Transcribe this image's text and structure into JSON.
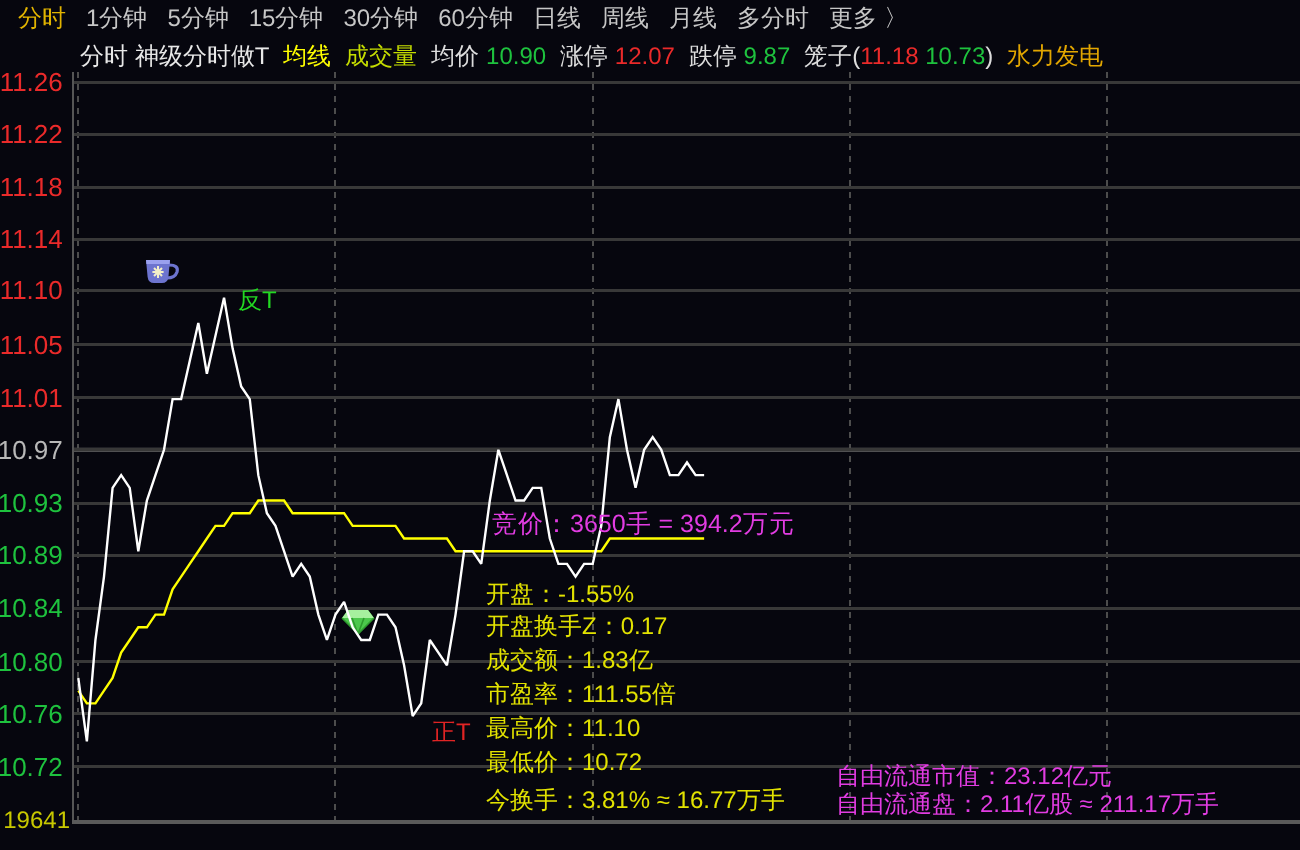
{
  "chart_data": {
    "type": "line",
    "title": "分时 神级分时做T",
    "categories": [
      null,
      null,
      null,
      null,
      null,
      null,
      null,
      null,
      null,
      null,
      null,
      null,
      null,
      null,
      null,
      null,
      null,
      null,
      null,
      null,
      null,
      null,
      null,
      null,
      null,
      null,
      null,
      null,
      null,
      null,
      null,
      null,
      null,
      null,
      null,
      null,
      null,
      null,
      null,
      null,
      null,
      null,
      null,
      null,
      null,
      null,
      null,
      null,
      null,
      null,
      null,
      null,
      null,
      null,
      null,
      null,
      null,
      null,
      null,
      null,
      null,
      null,
      null,
      null,
      null,
      null,
      null,
      null,
      null,
      null,
      null,
      null,
      null,
      null,
      null,
      null,
      null,
      null,
      null,
      null,
      null,
      null,
      null,
      null,
      null,
      null,
      null,
      null,
      null,
      null,
      null,
      null,
      null,
      null,
      null,
      null,
      null,
      null,
      null,
      null,
      null,
      null,
      null,
      null,
      null,
      null,
      null,
      null,
      null,
      null,
      null,
      null,
      null,
      null,
      null,
      null,
      null,
      null,
      null,
      null,
      null,
      null,
      null,
      null,
      null,
      null,
      null,
      null,
      null,
      null,
      null,
      null,
      null,
      null,
      null,
      null,
      null,
      null,
      null,
      null,
      null,
      null,
      null
    ],
    "series": [
      {
        "color": "#ffffff",
        "values": [
          10.79,
          10.74,
          10.82,
          10.87,
          10.94,
          10.95,
          10.94,
          10.89,
          10.93,
          10.95,
          10.97,
          11.01,
          11.01,
          11.04,
          11.07,
          11.03,
          11.06,
          11.09,
          11.05,
          11.02,
          11.01,
          10.95,
          10.92,
          10.91,
          10.89,
          10.87,
          10.88,
          10.87,
          10.84,
          10.82,
          10.84,
          10.85,
          10.83,
          10.82,
          10.82,
          10.84,
          10.84,
          10.83,
          10.8,
          10.76,
          10.77,
          10.82,
          10.81,
          10.8,
          10.84,
          10.89,
          10.89,
          10.88,
          10.93,
          10.97,
          10.95,
          10.93,
          10.93,
          10.94,
          10.94,
          10.9,
          10.88,
          10.88,
          10.87,
          10.88,
          10.88,
          10.91,
          10.98,
          11.01,
          10.97,
          10.94,
          10.97,
          10.98,
          10.97,
          10.95,
          10.95,
          10.96,
          10.95,
          10.95,
          null,
          null,
          null,
          null,
          null,
          null,
          null,
          null,
          null,
          null,
          null,
          null,
          null,
          null,
          null,
          null,
          null,
          null,
          null,
          null,
          null,
          null,
          null,
          null,
          null,
          null,
          null,
          null,
          null,
          null,
          null,
          null,
          null,
          null,
          null,
          null,
          null,
          null,
          null,
          null,
          null,
          null,
          null,
          null,
          null,
          null,
          null,
          null,
          null,
          null,
          null,
          null,
          null,
          null,
          null,
          null,
          null,
          null,
          null,
          null,
          null,
          null,
          null,
          null,
          null,
          null,
          null,
          null,
          null
        ]
      },
      {
        "name": "均线",
        "color": "#ffff00",
        "values": [
          10.78,
          10.77,
          10.77,
          10.78,
          10.79,
          10.81,
          10.82,
          10.83,
          10.83,
          10.84,
          10.84,
          10.86,
          10.87,
          10.88,
          10.89,
          10.9,
          10.91,
          10.91,
          10.92,
          10.92,
          10.92,
          10.93,
          10.93,
          10.93,
          10.93,
          10.92,
          10.92,
          10.92,
          10.92,
          10.92,
          10.92,
          10.92,
          10.91,
          10.91,
          10.91,
          10.91,
          10.91,
          10.91,
          10.9,
          10.9,
          10.9,
          10.9,
          10.9,
          10.9,
          10.89,
          10.89,
          10.89,
          10.89,
          10.89,
          10.89,
          10.89,
          10.89,
          10.89,
          10.89,
          10.89,
          10.89,
          10.89,
          10.89,
          10.89,
          10.89,
          10.89,
          10.89,
          10.9,
          10.9,
          10.9,
          10.9,
          10.9,
          10.9,
          10.9,
          10.9,
          10.9,
          10.9,
          10.9,
          10.9,
          null,
          null,
          null,
          null,
          null,
          null,
          null,
          null,
          null,
          null,
          null,
          null,
          null,
          null,
          null,
          null,
          null,
          null,
          null,
          null,
          null,
          null,
          null,
          null,
          null,
          null,
          null,
          null,
          null,
          null,
          null,
          null,
          null,
          null,
          null,
          null,
          null,
          null,
          null,
          null,
          null,
          null,
          null,
          null,
          null,
          null,
          null,
          null,
          null,
          null,
          null,
          null,
          null,
          null,
          null,
          null,
          null,
          null,
          null,
          null,
          null,
          null,
          null,
          null,
          null,
          null,
          null,
          null,
          null
        ]
      }
    ],
    "ylim": [
      10.678,
      11.268
    ],
    "yticks": [
      {
        "value": 10.72,
        "label": "10.72"
      },
      {
        "value": 10.762,
        "label": "10.76"
      },
      {
        "value": 10.803,
        "label": "10.80"
      },
      {
        "value": 10.845,
        "label": "10.84"
      },
      {
        "value": 10.887,
        "label": "10.89"
      },
      {
        "value": 10.928,
        "label": "10.93"
      },
      {
        "value": 10.97,
        "label": "10.97"
      },
      {
        "value": 11.011,
        "label": "11.01"
      },
      {
        "value": 11.053,
        "label": "11.05"
      },
      {
        "value": 11.096,
        "label": "11.10"
      },
      {
        "value": 11.136,
        "label": "11.14"
      },
      {
        "value": 11.177,
        "label": "11.18"
      },
      {
        "value": 11.219,
        "label": "11.22"
      },
      {
        "value": 11.26,
        "label": "11.26"
      }
    ],
    "ref_lines": [
      {
        "axis": "y",
        "value": 10.97,
        "color": "#6a6a6a"
      }
    ],
    "grid": true,
    "legend": "top",
    "annotations": [
      "分时",
      "1分钟",
      "5分钟",
      "15分钟",
      "30分钟",
      "60分钟",
      "日线",
      "周线",
      "月线",
      "多分时",
      "更多 〉",
      "成交量",
      "均价 10.90",
      "涨停 12.07",
      "跌停 9.87",
      "笼子(11.18 10.73)",
      "水力发电",
      "反T",
      "正T",
      "竞价：3650手 = 394.2万元",
      "开盘：-1.55%",
      "开盘换手Z：0.17",
      "成交额：1.83亿",
      "市盈率：111.55倍",
      "最高价：11.10",
      "最低价：10.72",
      "今换手：3.81% ≈ 16.77万手",
      "自由流通市值：23.12亿元",
      "自由流通盘：2.11亿股 ≈ 211.17万手",
      "19641"
    ]
  }
}
